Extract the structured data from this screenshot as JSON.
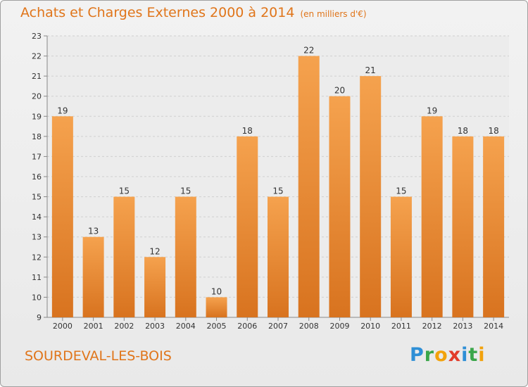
{
  "header": {
    "title": "Achats et Charges Externes 2000 à 2014",
    "unit": "(en milliers d'€)"
  },
  "footer": {
    "place": "SOURDEVAL-LES-BOIS",
    "logo_letters": [
      "P",
      "r",
      "o",
      "x",
      "i",
      "t",
      "i"
    ],
    "logo_colors": [
      "#2e8fd6",
      "#3aa64a",
      "#f2a20c",
      "#e23b2a",
      "#2e8fd6",
      "#3aa64a",
      "#f2a20c"
    ]
  },
  "colors": {
    "accent": "#e0751a",
    "bar_top": "#f5a24e",
    "bar_bottom": "#d8731f"
  },
  "chart_data": {
    "type": "bar",
    "title": "Achats et Charges Externes 2000 à 2014",
    "subtitle": "(en milliers d'€)",
    "categories": [
      "2000",
      "2001",
      "2002",
      "2003",
      "2004",
      "2005",
      "2006",
      "2007",
      "2008",
      "2009",
      "2010",
      "2011",
      "2012",
      "2013",
      "2014"
    ],
    "values": [
      19,
      13,
      15,
      12,
      15,
      10,
      18,
      15,
      22,
      20,
      21,
      15,
      19,
      18,
      18
    ],
    "ylim": [
      9,
      23
    ],
    "yticks": [
      9,
      10,
      11,
      12,
      13,
      14,
      15,
      16,
      17,
      18,
      19,
      20,
      21,
      22,
      23
    ],
    "grid": true,
    "legend": "none"
  }
}
